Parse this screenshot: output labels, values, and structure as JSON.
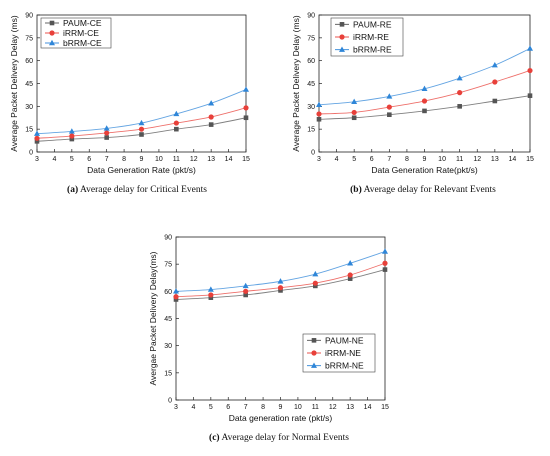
{
  "chart_data": [
    {
      "type": "line",
      "caption_tag": "(a)",
      "caption_text": "Average delay for Critical Events",
      "xlabel": "Data Generation Rate  (pkt/s)",
      "ylabel": "Average Packet Delivery Delay (ms)",
      "x": [
        3,
        5,
        7,
        9,
        11,
        13,
        15
      ],
      "xlim": [
        3,
        15
      ],
      "xticks": [
        3,
        4,
        5,
        6,
        7,
        8,
        9,
        10,
        11,
        12,
        13,
        14,
        15
      ],
      "ylim": [
        0,
        90
      ],
      "yticks": [
        0,
        15,
        30,
        45,
        60,
        75,
        90
      ],
      "legend_position": "top-left",
      "series": [
        {
          "name": "PAUM-CE",
          "color": "#555555",
          "marker": "square",
          "values": [
            7,
            8.5,
            9.5,
            11.5,
            15,
            18,
            22.5
          ]
        },
        {
          "name": "iRRM-CE",
          "color": "#e8403a",
          "marker": "circle",
          "values": [
            9,
            10.5,
            12.5,
            15,
            19,
            23,
            29
          ]
        },
        {
          "name": "bRRM-CE",
          "color": "#2f86d8",
          "marker": "triangle",
          "values": [
            12,
            13.5,
            15.5,
            19,
            25,
            32,
            41
          ]
        }
      ]
    },
    {
      "type": "line",
      "caption_tag": "(b)",
      "caption_text": "Average delay for Relevant Events",
      "xlabel": "Data Generation Rate(pkt/s)",
      "ylabel": "Average Packet Delivery Delay (ms)",
      "x": [
        3,
        5,
        7,
        9,
        11,
        13,
        15
      ],
      "xlim": [
        3,
        15
      ],
      "xticks": [
        3,
        4,
        5,
        6,
        7,
        8,
        9,
        10,
        11,
        12,
        13,
        14,
        15
      ],
      "ylim": [
        0,
        90
      ],
      "yticks": [
        0,
        15,
        30,
        45,
        60,
        75,
        90
      ],
      "legend_position": "top-left",
      "series": [
        {
          "name": "PAUM-RE",
          "color": "#555555",
          "marker": "square",
          "values": [
            21.5,
            22.5,
            24.5,
            27,
            30,
            33.5,
            37
          ]
        },
        {
          "name": "iRRM-RE",
          "color": "#e8403a",
          "marker": "circle",
          "values": [
            25,
            26,
            29.5,
            33.5,
            39,
            46,
            53.5
          ]
        },
        {
          "name": "bRRM-RE",
          "color": "#2f86d8",
          "marker": "triangle",
          "values": [
            31,
            33,
            36.5,
            41.5,
            48.5,
            57,
            68
          ]
        }
      ]
    },
    {
      "type": "line",
      "caption_tag": "(c)",
      "caption_text": "Average delay for Normal Events",
      "xlabel": "Data generation rate (pkt/s)",
      "ylabel": "Avergae Packet Delivery Delay(ms)",
      "x": [
        3,
        5,
        7,
        9,
        11,
        13,
        15
      ],
      "xlim": [
        3,
        15
      ],
      "xticks": [
        3,
        4,
        5,
        6,
        7,
        8,
        9,
        10,
        11,
        12,
        13,
        14,
        15
      ],
      "ylim": [
        0,
        90
      ],
      "yticks": [
        0,
        15,
        30,
        45,
        60,
        75,
        90
      ],
      "legend_position": "middle-right",
      "series": [
        {
          "name": "PAUM-NE",
          "color": "#555555",
          "marker": "square",
          "values": [
            55.5,
            56.5,
            58,
            60.5,
            63,
            67,
            72
          ]
        },
        {
          "name": "iRRM-NE",
          "color": "#e8403a",
          "marker": "circle",
          "values": [
            57,
            58,
            60,
            62,
            64.5,
            69,
            75.5
          ]
        },
        {
          "name": "bRRM-NE",
          "color": "#2f86d8",
          "marker": "triangle",
          "values": [
            60,
            61,
            63,
            65.5,
            69.5,
            75.5,
            82
          ]
        }
      ]
    }
  ]
}
